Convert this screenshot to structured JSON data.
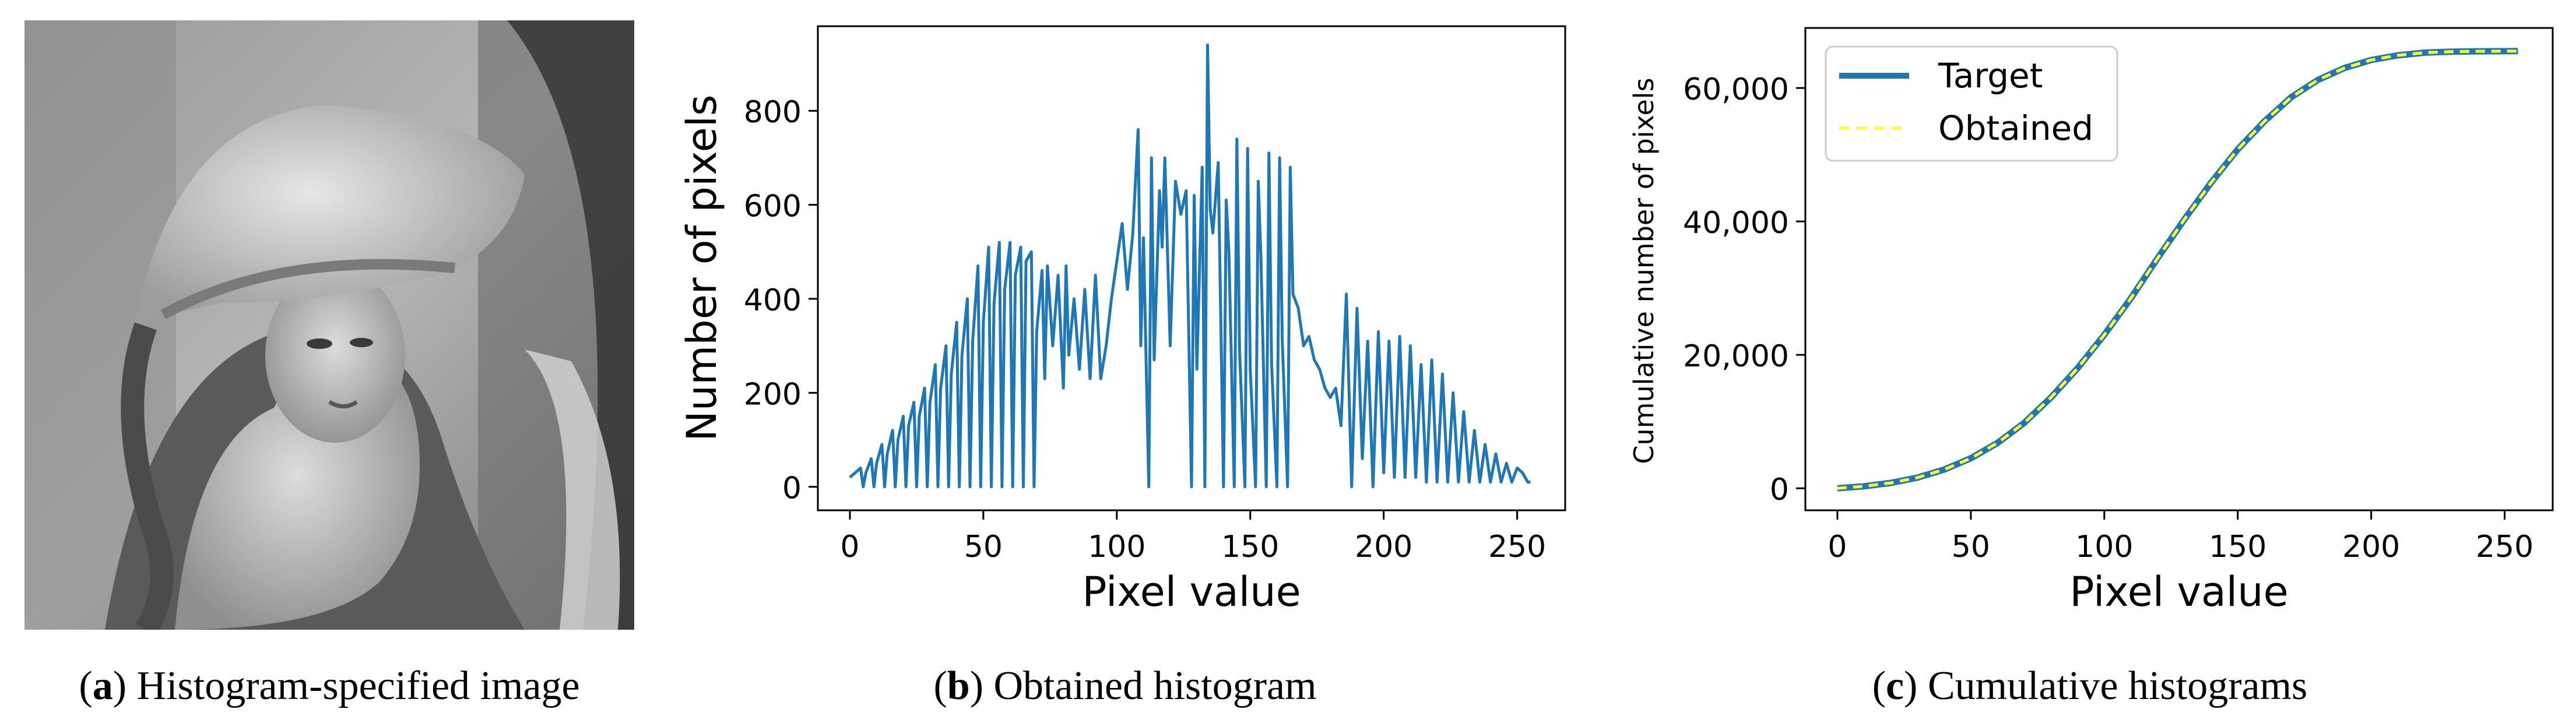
{
  "panels": {
    "a": {
      "caption_letter": "a",
      "caption_text": " Histogram-specified image"
    },
    "b": {
      "caption_letter": "b",
      "caption_text": " Obtained histogram"
    },
    "c": {
      "caption_letter": "c",
      "caption_text": " Cumulative histograms"
    }
  },
  "colors": {
    "series_blue": "#1f77b4",
    "series_yellow": "#ffff33",
    "axis": "#000000"
  },
  "chart_data": [
    {
      "id": "obtained-histogram",
      "type": "line",
      "title": "",
      "xlabel": "Pixel value",
      "ylabel": "Number of pixels",
      "xlim": [
        -12,
        268
      ],
      "ylim": [
        -50,
        980
      ],
      "xticks": [
        0,
        50,
        100,
        150,
        200,
        250
      ],
      "xtick_labels": [
        "0",
        "50",
        "100",
        "150",
        "200",
        "250"
      ],
      "yticks": [
        0,
        200,
        400,
        600,
        800
      ],
      "ytick_labels": [
        "0",
        "200",
        "400",
        "600",
        "800"
      ],
      "series": [
        {
          "name": "Obtained histogram",
          "color": "#1f77b4",
          "x": [
            0,
            2,
            4,
            5,
            6,
            8,
            9,
            10,
            12,
            13,
            14,
            16,
            17,
            18,
            20,
            21,
            22,
            24,
            25,
            26,
            28,
            29,
            30,
            32,
            33,
            34,
            36,
            37,
            38,
            40,
            41,
            42,
            44,
            45,
            46,
            48,
            49,
            50,
            52,
            53,
            54,
            56,
            57,
            58,
            60,
            61,
            62,
            64,
            65,
            66,
            68,
            69,
            70,
            72,
            73,
            74,
            76,
            78,
            80,
            81,
            82,
            84,
            86,
            88,
            90,
            92,
            94,
            96,
            98,
            100,
            102,
            104,
            106,
            108,
            109,
            110,
            112,
            113,
            114,
            116,
            117,
            118,
            120,
            122,
            124,
            126,
            128,
            129,
            130,
            132,
            133,
            134,
            135,
            136,
            138,
            140,
            141,
            142,
            144,
            145,
            146,
            148,
            149,
            150,
            152,
            153,
            154,
            156,
            157,
            158,
            160,
            161,
            162,
            164,
            165,
            166,
            168,
            170,
            172,
            174,
            176,
            178,
            180,
            182,
            184,
            186,
            188,
            190,
            192,
            194,
            196,
            198,
            200,
            202,
            204,
            206,
            208,
            210,
            212,
            214,
            216,
            218,
            220,
            222,
            224,
            226,
            228,
            230,
            232,
            234,
            236,
            238,
            240,
            242,
            244,
            246,
            248,
            250,
            252,
            254,
            255
          ],
          "y": [
            20,
            30,
            40,
            0,
            30,
            60,
            0,
            50,
            90,
            0,
            70,
            120,
            0,
            100,
            150,
            0,
            130,
            180,
            0,
            150,
            210,
            0,
            180,
            260,
            0,
            210,
            300,
            0,
            240,
            350,
            0,
            280,
            400,
            0,
            310,
            470,
            0,
            350,
            510,
            0,
            390,
            520,
            0,
            420,
            520,
            0,
            450,
            510,
            0,
            480,
            500,
            0,
            330,
            460,
            230,
            470,
            300,
            450,
            210,
            470,
            280,
            400,
            250,
            420,
            230,
            450,
            230,
            300,
            400,
            480,
            560,
            420,
            540,
            760,
            300,
            530,
            0,
            700,
            270,
            630,
            510,
            700,
            300,
            650,
            580,
            630,
            0,
            620,
            250,
            680,
            0,
            940,
            590,
            540,
            690,
            0,
            610,
            500,
            0,
            740,
            290,
            0,
            720,
            250,
            0,
            650,
            490,
            0,
            710,
            260,
            0,
            700,
            310,
            0,
            680,
            410,
            380,
            300,
            320,
            270,
            250,
            210,
            190,
            210,
            130,
            410,
            0,
            380,
            60,
            310,
            0,
            330,
            30,
            310,
            20,
            320,
            20,
            300,
            20,
            260,
            10,
            270,
            10,
            240,
            10,
            200,
            10,
            160,
            10,
            120,
            10,
            90,
            10,
            70,
            10,
            50,
            10,
            40,
            30,
            10,
            10
          ]
        }
      ]
    },
    {
      "id": "cumulative-histograms",
      "type": "line",
      "title": "",
      "xlabel": "Pixel value",
      "ylabel": "Cumulative number of pixels",
      "xlim": [
        -12,
        268
      ],
      "ylim": [
        -3300,
        69000
      ],
      "xticks": [
        0,
        50,
        100,
        150,
        200,
        250
      ],
      "xtick_labels": [
        "0",
        "50",
        "100",
        "150",
        "200",
        "250"
      ],
      "yticks": [
        0,
        20000,
        40000,
        60000
      ],
      "ytick_labels": [
        "0",
        "20,000",
        "40,000",
        "60,000"
      ],
      "legend": "top-left",
      "series": [
        {
          "name": "Target",
          "color": "#1f77b4",
          "style": "solid",
          "x": [
            0,
            10,
            20,
            30,
            40,
            50,
            60,
            70,
            80,
            90,
            100,
            110,
            120,
            130,
            140,
            150,
            160,
            170,
            180,
            190,
            200,
            210,
            220,
            230,
            240,
            255
          ],
          "y": [
            0,
            300,
            800,
            1600,
            2800,
            4500,
            6800,
            9800,
            13600,
            18000,
            23000,
            28500,
            34500,
            40300,
            45800,
            50800,
            55000,
            58600,
            61200,
            63000,
            64200,
            64900,
            65300,
            65450,
            65500,
            65536
          ]
        },
        {
          "name": "Obtained",
          "color": "#ffff33",
          "style": "dashed",
          "x": [
            0,
            10,
            20,
            30,
            40,
            50,
            60,
            70,
            80,
            90,
            100,
            110,
            120,
            130,
            140,
            150,
            160,
            170,
            180,
            190,
            200,
            210,
            220,
            230,
            240,
            255
          ],
          "y": [
            0,
            300,
            800,
            1600,
            2800,
            4500,
            6800,
            9800,
            13600,
            18000,
            23000,
            28500,
            34500,
            40300,
            45800,
            50800,
            55000,
            58600,
            61200,
            63000,
            64200,
            64900,
            65300,
            65450,
            65500,
            65536
          ]
        }
      ]
    }
  ]
}
